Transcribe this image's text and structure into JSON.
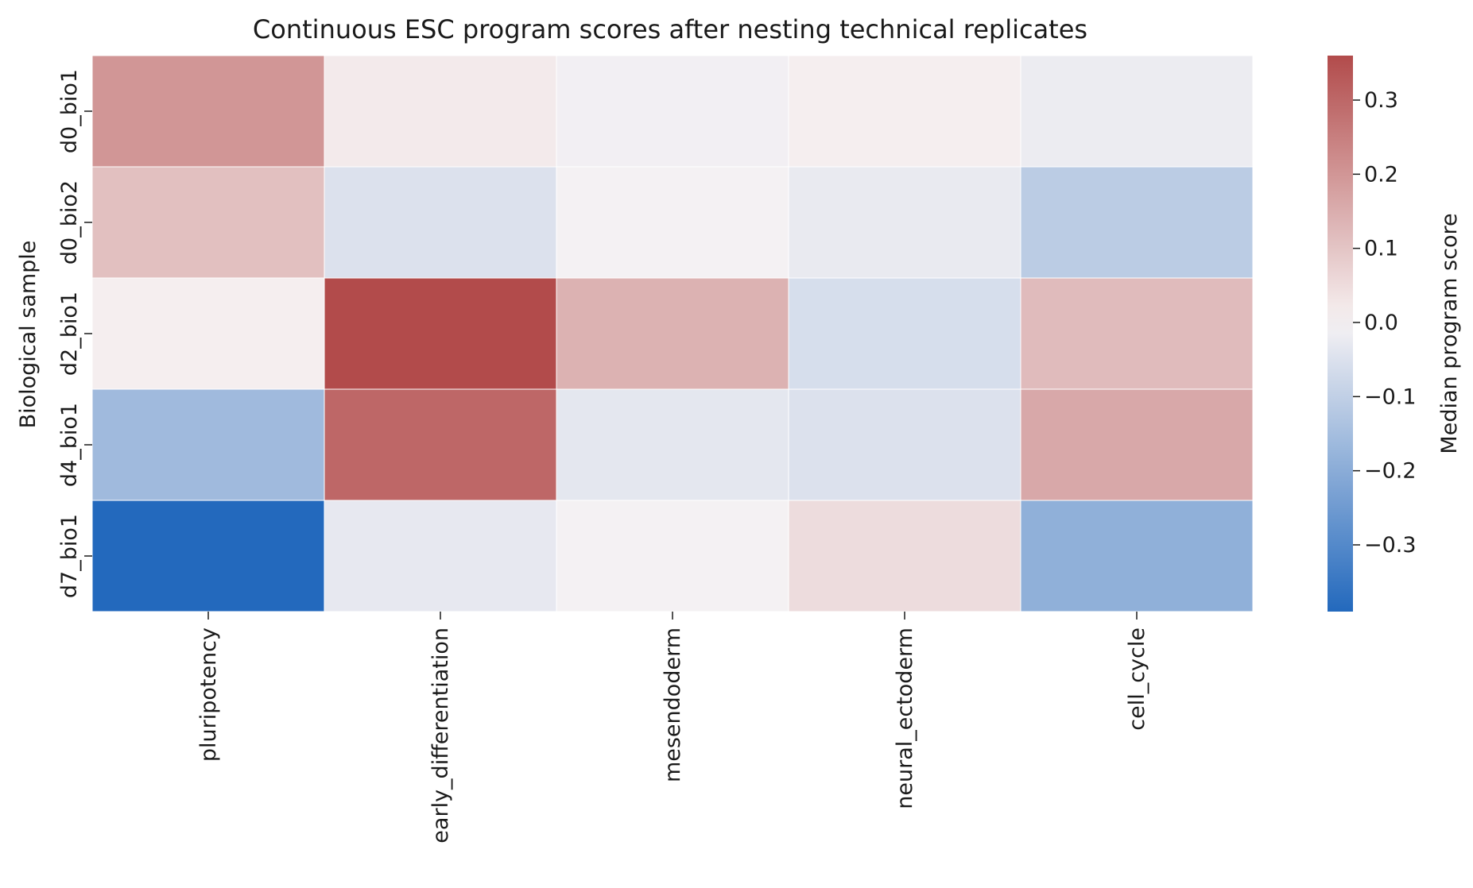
{
  "chart_data": {
    "type": "heatmap",
    "title": "Continuous ESC program scores after nesting technical replicates",
    "xlabel": "",
    "ylabel": "Biological sample",
    "x_categories": [
      "pluripotency",
      "early_differentiation",
      "mesendoderm",
      "neural_ectoderm",
      "cell_cycle"
    ],
    "y_categories": [
      "d0_bio1",
      "d0_bio2",
      "d2_bio1",
      "d4_bio1",
      "d7_bio1"
    ],
    "values": [
      [
        0.2,
        0.02,
        -0.01,
        0.01,
        -0.02
      ],
      [
        0.11,
        -0.05,
        -0.005,
        -0.025,
        -0.11
      ],
      [
        0.01,
        0.36,
        0.14,
        -0.06,
        0.12
      ],
      [
        -0.16,
        0.3,
        -0.035,
        -0.05,
        0.16
      ],
      [
        -0.39,
        -0.03,
        -0.005,
        0.05,
        -0.19
      ]
    ],
    "colorbar": {
      "label": "Median program score",
      "min": -0.39,
      "max": 0.36,
      "ticks": [
        0.3,
        0.2,
        0.1,
        0.0,
        -0.1,
        -0.2,
        -0.3
      ],
      "tick_labels": [
        "0.3",
        "0.2",
        "0.1",
        "0.0",
        "−0.1",
        "−0.2",
        "−0.3"
      ]
    },
    "colormap": {
      "negative_end": "#2369bd",
      "center": "#f7f3f4",
      "positive_end": "#b24b4b"
    },
    "grid": false,
    "legend": "colorbar-right"
  }
}
